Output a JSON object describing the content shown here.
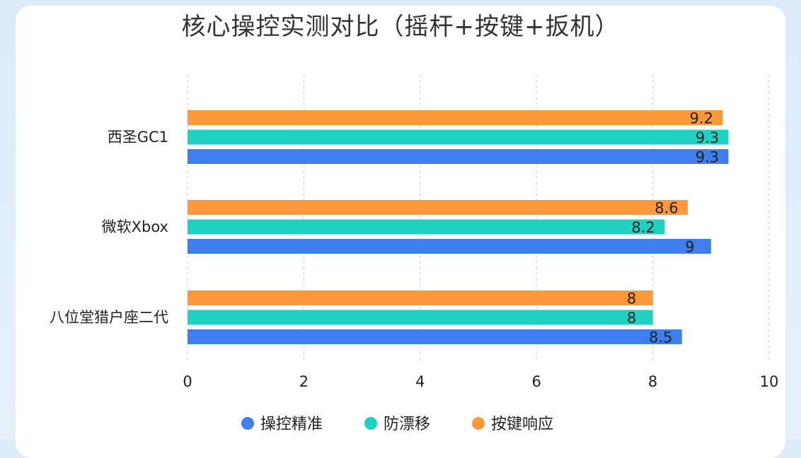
{
  "chart_data": {
    "type": "bar",
    "orientation": "horizontal",
    "title": "核心操控实测对比（摇杆+按键+扳机）",
    "categories": [
      "西圣GC1",
      "微软Xbox",
      "八位堂猎户座二代"
    ],
    "series": [
      {
        "name": "操控精准",
        "color": "#3f7fec",
        "values": [
          9.3,
          9,
          8.5
        ]
      },
      {
        "name": "防漂移",
        "color": "#20d0c0",
        "values": [
          9.3,
          8.2,
          8
        ]
      },
      {
        "name": "按键响应",
        "color": "#fa983a",
        "values": [
          9.2,
          8.6,
          8
        ]
      }
    ],
    "xlim": [
      0,
      10
    ],
    "xticks": [
      0,
      2,
      4,
      6,
      8,
      10
    ],
    "grid": "vertical-dashed",
    "legend": "bottom-center"
  }
}
